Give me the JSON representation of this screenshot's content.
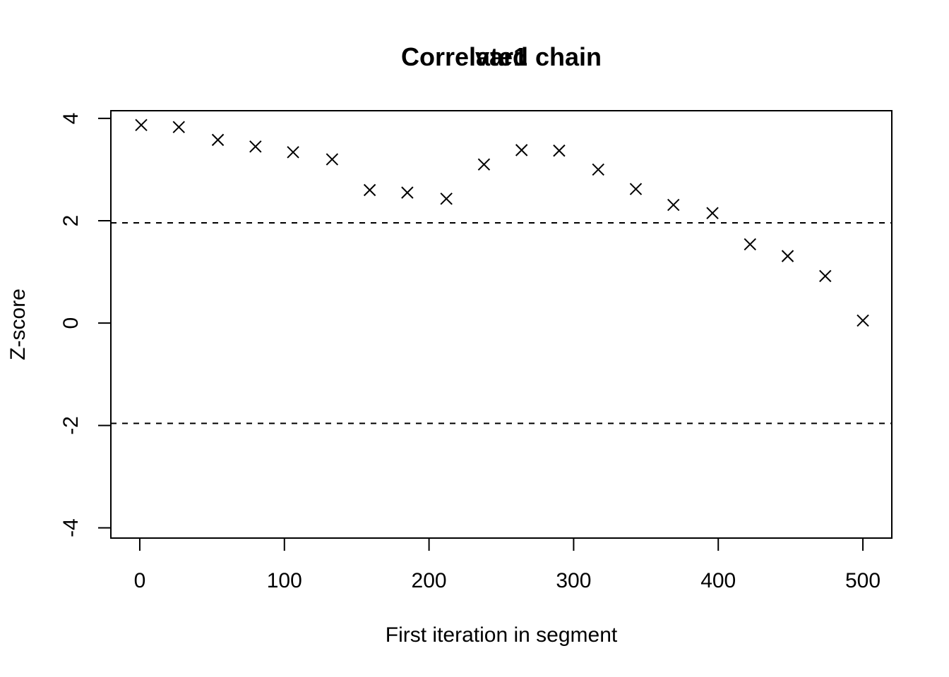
{
  "chart_data": {
    "type": "scatter",
    "title": "Correlated chain",
    "title_overlay": "var1",
    "xlabel": "First iteration in segment",
    "ylabel": "Z-score",
    "xlim": [
      -20,
      520
    ],
    "ylim": [
      -4.2,
      4.15
    ],
    "x_ticks": [
      0,
      100,
      200,
      300,
      400,
      500
    ],
    "y_ticks": [
      -4,
      -2,
      0,
      2,
      4
    ],
    "x_tick_labels": [
      "0",
      "100",
      "200",
      "300",
      "400",
      "500"
    ],
    "y_tick_labels": [
      "-4",
      "-2",
      "0",
      "2",
      "4"
    ],
    "reference_lines": [
      1.96,
      -1.96
    ],
    "marker": "x",
    "grid": false,
    "series": [
      {
        "x": [
          1,
          27,
          54,
          80,
          106,
          133,
          159,
          185,
          212,
          238,
          264,
          290,
          317,
          343,
          369,
          396,
          422,
          448,
          474,
          500
        ],
        "y": [
          3.87,
          3.83,
          3.58,
          3.45,
          3.34,
          3.2,
          2.6,
          2.55,
          2.43,
          3.1,
          3.38,
          3.37,
          3.0,
          2.62,
          2.31,
          2.15,
          1.54,
          1.31,
          0.92,
          0.05
        ]
      }
    ]
  }
}
